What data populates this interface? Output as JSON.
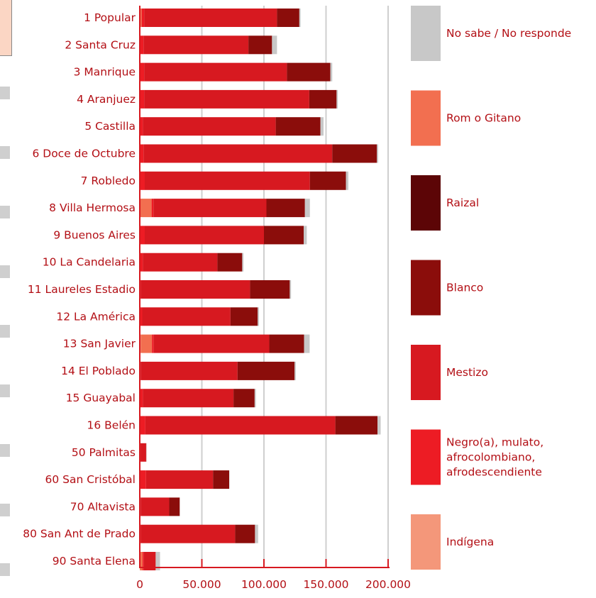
{
  "chart_data": {
    "type": "bar",
    "orientation": "horizontal",
    "stacked": true,
    "categories": [
      "1 Popular",
      "2 Santa Cruz",
      "3 Manrique",
      "4 Aranjuez",
      "5 Castilla",
      "6 Doce de Octubre",
      "7 Robledo",
      "8 Villa Hermosa",
      "9 Buenos Aires",
      "10 La Candelaria",
      "11 Laureles Estadio",
      "12 La América",
      "13 San Javier",
      "14 El Poblado",
      "15 Guayabal",
      "16 Belén",
      "50 Palmitas",
      "60 San Cristóbal",
      "70 Altavista",
      "80 San Ant de Prado",
      "90 Santa Elena"
    ],
    "series": [
      {
        "name": "Indígena",
        "color": "#f4977a",
        "values": [
          500,
          500,
          500,
          500,
          500,
          500,
          500,
          500,
          500,
          500,
          300,
          500,
          800,
          200,
          500,
          500,
          100,
          500,
          200,
          300,
          300
        ]
      },
      {
        "name": "Negro(a), mulato, afrocolombiano, afrodescendiente",
        "color": "#ed1c24",
        "values": [
          2000,
          2500,
          3000,
          3000,
          2000,
          2500,
          3500,
          1500,
          3500,
          2000,
          500,
          1500,
          1500,
          500,
          2000,
          4000,
          500,
          4500,
          500,
          500,
          1000
        ]
      },
      {
        "name": "Mestizo",
        "color": "#d71920",
        "values": [
          107000,
          84500,
          115000,
          133000,
          107000,
          152000,
          133000,
          91000,
          96000,
          60000,
          88000,
          71000,
          93000,
          78000,
          73000,
          153000,
          4500,
          54000,
          23000,
          76000,
          9500
        ]
      },
      {
        "name": "Blanco",
        "color": "#8b0d0b",
        "values": [
          18000,
          19000,
          35000,
          22000,
          36000,
          36000,
          29000,
          31000,
          32000,
          20000,
          32000,
          22000,
          28000,
          46000,
          17000,
          34000,
          200,
          13000,
          8500,
          16000,
          0
        ]
      },
      {
        "name": "Raizal",
        "color": "#5c0506",
        "values": [
          0,
          0,
          0,
          0,
          0,
          0,
          0,
          0,
          0,
          0,
          0,
          0,
          0,
          0,
          0,
          0,
          0,
          0,
          0,
          0,
          0
        ]
      },
      {
        "name": "Rom o Gitano",
        "color": "#f26f50",
        "values": [
          1000,
          0,
          0,
          0,
          0,
          0,
          0,
          9000,
          0,
          0,
          0,
          0,
          9000,
          0,
          0,
          0,
          0,
          0,
          0,
          0,
          2000
        ]
      },
      {
        "name": "No sabe / No responde",
        "color": "#c8c8c8",
        "values": [
          1000,
          4000,
          1500,
          1000,
          2500,
          1000,
          2000,
          4000,
          2500,
          1000,
          1000,
          1000,
          4500,
          1000,
          1000,
          2500,
          100,
          200,
          100,
          2500,
          3500
        ]
      }
    ],
    "series_render_order": [
      "Indígena",
      "Rom o Gitano",
      "Negro(a), mulato, afrocolombiano, afrodescendiente",
      "Mestizo",
      "Raizal",
      "Blanco",
      "No sabe / No responde"
    ],
    "legend_order": [
      "No sabe / No responde",
      "Rom o Gitano",
      "Raizal",
      "Blanco",
      "Mestizo",
      "Negro(a), mulato, afrocolombiano, afrodescendiente",
      "Indígena"
    ],
    "legend_placement": "right",
    "x_ticks": [
      0,
      50000,
      100000,
      150000,
      200000
    ],
    "x_tick_labels": [
      "0",
      "50.000",
      "100.000",
      "150.000",
      "200.000"
    ],
    "xlim": [
      0,
      200000
    ],
    "grid": "vertical",
    "axis_color": "#d71920",
    "grid_color": "#cfcfcf",
    "text_color": "#b30f15"
  }
}
